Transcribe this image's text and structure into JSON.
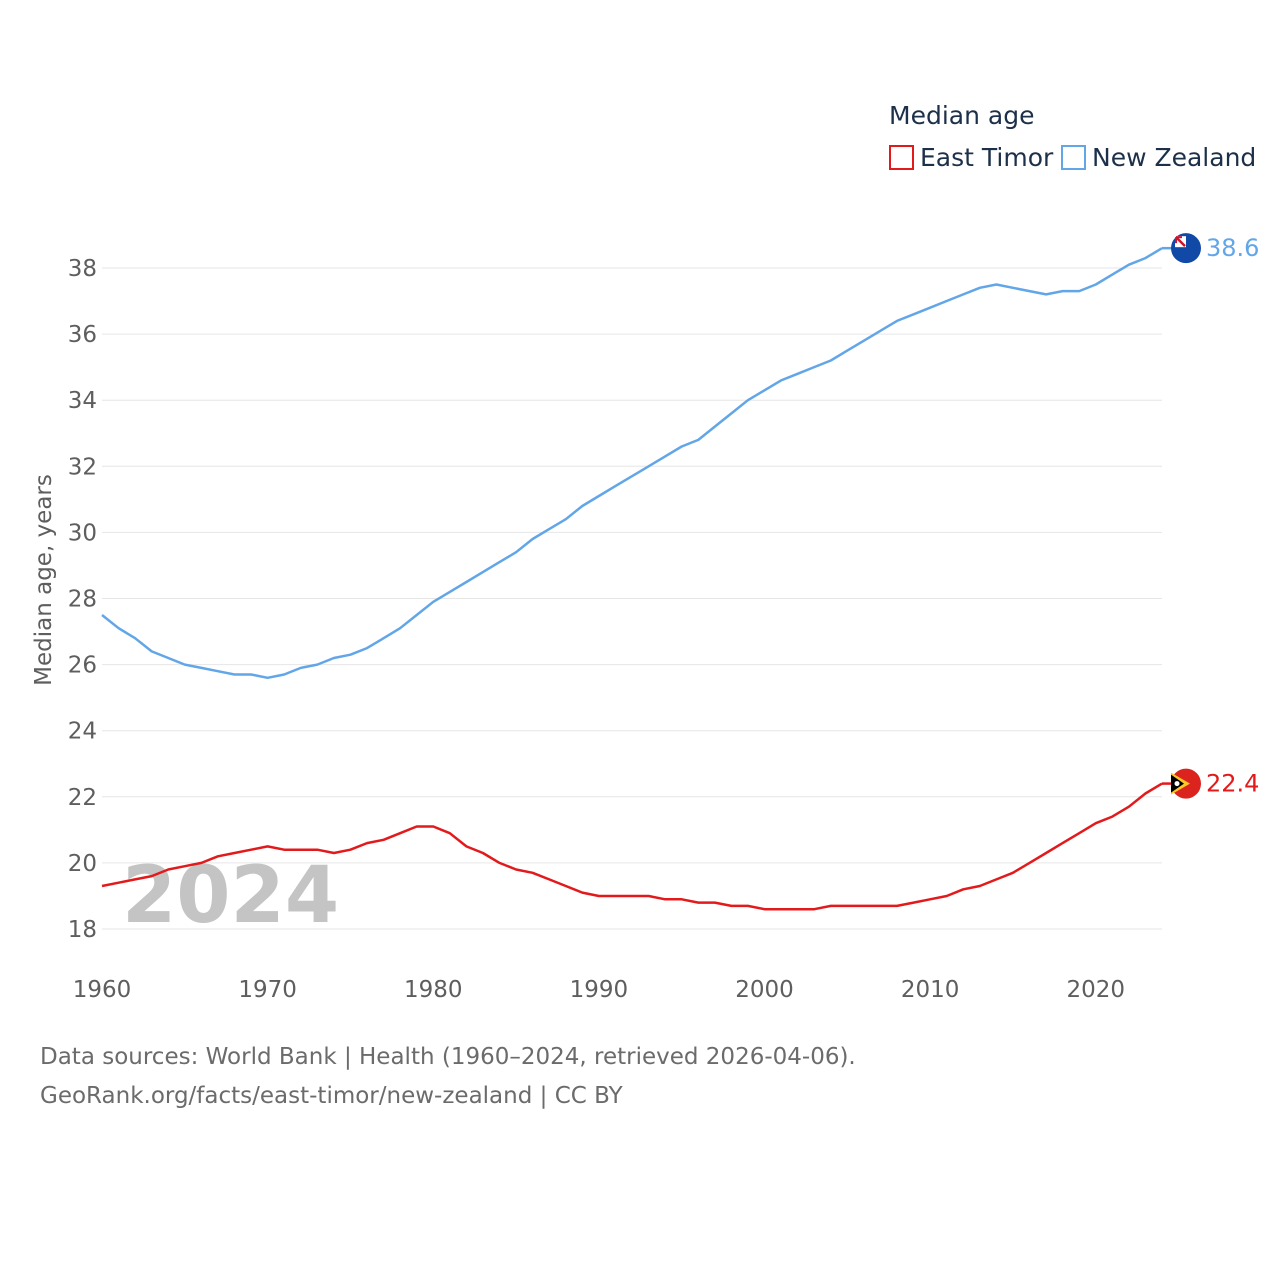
{
  "chart_data": {
    "type": "line",
    "legend_title": "Median age",
    "ylabel": "Median age, years",
    "xlabel": "",
    "ylim": [
      17,
      39.5
    ],
    "xlim": [
      1960,
      2024
    ],
    "y_ticks": [
      18,
      20,
      22,
      24,
      26,
      28,
      30,
      32,
      34,
      36,
      38
    ],
    "x_ticks": [
      1960,
      1970,
      1980,
      1990,
      2000,
      2010,
      2020
    ],
    "watermark_year": "2024",
    "x": [
      1960,
      1961,
      1962,
      1963,
      1964,
      1965,
      1966,
      1967,
      1968,
      1969,
      1970,
      1971,
      1972,
      1973,
      1974,
      1975,
      1976,
      1977,
      1978,
      1979,
      1980,
      1981,
      1982,
      1983,
      1984,
      1985,
      1986,
      1987,
      1988,
      1989,
      1990,
      1991,
      1992,
      1993,
      1994,
      1995,
      1996,
      1997,
      1998,
      1999,
      2000,
      2001,
      2002,
      2003,
      2004,
      2005,
      2006,
      2007,
      2008,
      2009,
      2010,
      2011,
      2012,
      2013,
      2014,
      2015,
      2016,
      2017,
      2018,
      2019,
      2020,
      2021,
      2022,
      2023,
      2024
    ],
    "series": [
      {
        "name": "East Timor",
        "color": "#e31a1c",
        "end_label": "22.4",
        "flag_icon": "east-timor-flag-icon",
        "values": [
          19.3,
          19.4,
          19.5,
          19.6,
          19.8,
          19.9,
          20.0,
          20.2,
          20.3,
          20.4,
          20.5,
          20.4,
          20.4,
          20.4,
          20.3,
          20.4,
          20.6,
          20.7,
          20.9,
          21.1,
          21.1,
          20.9,
          20.5,
          20.3,
          20.0,
          19.8,
          19.7,
          19.5,
          19.3,
          19.1,
          19.0,
          19.0,
          19.0,
          19.0,
          18.9,
          18.9,
          18.8,
          18.8,
          18.7,
          18.7,
          18.6,
          18.6,
          18.6,
          18.6,
          18.7,
          18.7,
          18.7,
          18.7,
          18.7,
          18.8,
          18.9,
          19.0,
          19.2,
          19.3,
          19.5,
          19.7,
          20.0,
          20.3,
          20.6,
          20.9,
          21.2,
          21.4,
          21.7,
          22.1,
          22.4
        ]
      },
      {
        "name": "New Zealand",
        "color": "#62a6e8",
        "end_label": "38.6",
        "flag_icon": "new-zealand-flag-icon",
        "values": [
          27.5,
          27.1,
          26.8,
          26.4,
          26.2,
          26.0,
          25.9,
          25.8,
          25.7,
          25.7,
          25.6,
          25.7,
          25.9,
          26.0,
          26.2,
          26.3,
          26.5,
          26.8,
          27.1,
          27.5,
          27.9,
          28.2,
          28.5,
          28.8,
          29.1,
          29.4,
          29.8,
          30.1,
          30.4,
          30.8,
          31.1,
          31.4,
          31.7,
          32.0,
          32.3,
          32.6,
          32.8,
          33.2,
          33.6,
          34.0,
          34.3,
          34.6,
          34.8,
          35.0,
          35.2,
          35.5,
          35.8,
          36.1,
          36.4,
          36.6,
          36.8,
          37.0,
          37.2,
          37.4,
          37.5,
          37.4,
          37.3,
          37.2,
          37.3,
          37.3,
          37.5,
          37.8,
          38.1,
          38.3,
          38.6
        ]
      }
    ]
  },
  "footer": {
    "line1": "Data sources: World Bank | Health (1960–2024, retrieved 2026-04-06).",
    "line2": "GeoRank.org/facts/east-timor/new-zealand | CC BY"
  }
}
